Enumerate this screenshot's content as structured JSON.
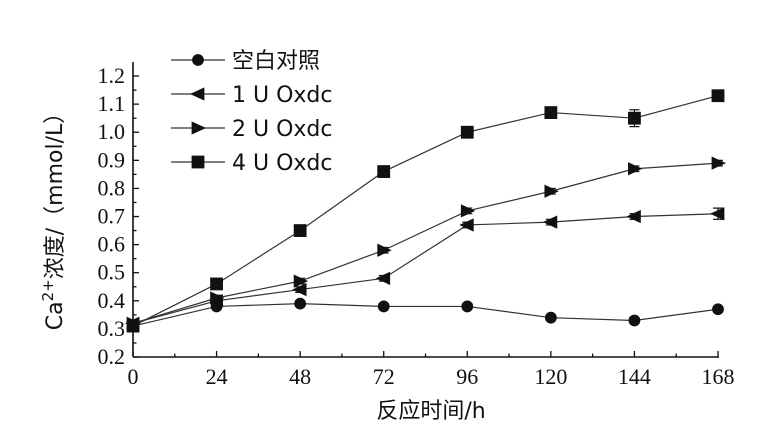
{
  "chart_data": {
    "type": "line",
    "xlabel": "反应时间/h",
    "ylabel_base": "Ca",
    "ylabel_sup": "2+",
    "ylabel_rest": "浓度/（mmol/L）",
    "x": [
      0,
      24,
      48,
      72,
      96,
      120,
      144,
      168
    ],
    "xlim": [
      0,
      168
    ],
    "ylim": [
      0.2,
      1.25
    ],
    "xticks": [
      0,
      24,
      48,
      72,
      96,
      120,
      144,
      168
    ],
    "yticks": [
      0.2,
      0.3,
      0.4,
      0.5,
      0.6,
      0.7,
      0.8,
      0.9,
      1.0,
      1.1,
      1.2
    ],
    "ytick_labels": [
      "0.2",
      "0.3",
      "0.4",
      "0.5",
      "0.6",
      "0.7",
      "0.8",
      "0.9",
      "1.0",
      "1.1",
      "1.2"
    ],
    "grid": false,
    "legend_position": "top-left",
    "series": [
      {
        "name": "空白对照",
        "marker": "circle",
        "values": [
          0.31,
          0.38,
          0.39,
          0.38,
          0.38,
          0.34,
          0.33,
          0.37
        ],
        "errors": [
          0.01,
          0.01,
          0.01,
          0.01,
          0.01,
          0.01,
          0.01,
          0.01
        ]
      },
      {
        "name": "1 U Oxdc",
        "marker": "triangle-left",
        "values": [
          0.32,
          0.4,
          0.44,
          0.48,
          0.67,
          0.68,
          0.7,
          0.71
        ],
        "errors": [
          0.01,
          0.01,
          0.01,
          0.01,
          0.01,
          0.01,
          0.01,
          0.02
        ]
      },
      {
        "name": "2 U Oxdc",
        "marker": "triangle-right",
        "values": [
          0.32,
          0.41,
          0.47,
          0.58,
          0.72,
          0.79,
          0.87,
          0.89
        ],
        "errors": [
          0.01,
          0.01,
          0.01,
          0.01,
          0.01,
          0.01,
          0.01,
          0.01
        ]
      },
      {
        "name": "4 U Oxdc",
        "marker": "square",
        "values": [
          0.31,
          0.46,
          0.65,
          0.86,
          1.0,
          1.07,
          1.05,
          1.13
        ],
        "errors": [
          0.01,
          0.01,
          0.01,
          0.01,
          0.01,
          0.01,
          0.03,
          0.01
        ]
      }
    ],
    "colors": {
      "line": "#333333",
      "marker": "#111111"
    }
  }
}
